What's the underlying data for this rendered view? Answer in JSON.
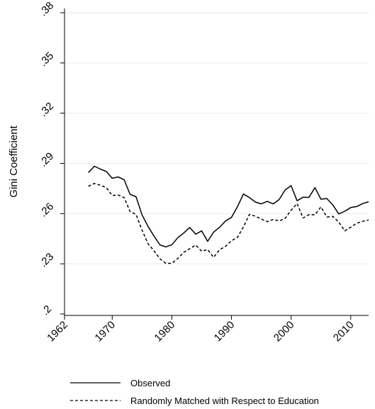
{
  "chart_data": {
    "type": "line",
    "title": "",
    "xlabel": "",
    "ylabel": "Gini Coefficient",
    "xlim": [
      1962,
      2013
    ],
    "ylim": [
      0.2,
      0.38
    ],
    "x_ticks": [
      1962,
      1970,
      1980,
      1990,
      2000,
      2010
    ],
    "x_tick_labels": [
      "1962",
      "1970",
      "1980",
      "1990",
      "2000",
      "2010"
    ],
    "y_ticks": [
      0.2,
      0.23,
      0.26,
      0.29,
      0.32,
      0.35,
      0.38
    ],
    "y_tick_labels": [
      ".2",
      ".23",
      ".26",
      ".29",
      ".32",
      ".35",
      ".38"
    ],
    "grid": "horizontal",
    "legend_position": "bottom",
    "x": [
      1966,
      1967,
      1968,
      1969,
      1970,
      1971,
      1972,
      1973,
      1974,
      1975,
      1976,
      1977,
      1978,
      1979,
      1980,
      1981,
      1982,
      1983,
      1984,
      1985,
      1986,
      1987,
      1988,
      1989,
      1990,
      1991,
      1992,
      1993,
      1994,
      1995,
      1996,
      1997,
      1998,
      1999,
      2000,
      2001,
      2002,
      2003,
      2004,
      2005,
      2006,
      2007,
      2008,
      2009,
      2010,
      2011,
      2012,
      2013
    ],
    "series": [
      {
        "name": "Observed",
        "style": "solid",
        "color": "#000000",
        "values": [
          0.2845,
          0.2883,
          0.2866,
          0.2852,
          0.2811,
          0.2819,
          0.2802,
          0.2715,
          0.2701,
          0.2592,
          0.2524,
          0.2466,
          0.2413,
          0.2401,
          0.2414,
          0.2456,
          0.2484,
          0.2517,
          0.2477,
          0.2497,
          0.2434,
          0.2489,
          0.2518,
          0.2556,
          0.2577,
          0.2641,
          0.2717,
          0.2696,
          0.2669,
          0.2658,
          0.2673,
          0.2658,
          0.2684,
          0.2741,
          0.2767,
          0.2677,
          0.2698,
          0.2697,
          0.2755,
          0.2686,
          0.269,
          0.2652,
          0.2598,
          0.2614,
          0.2636,
          0.2642,
          0.266,
          0.2671
        ]
      },
      {
        "name": "Randomly Matched with Respect to Education",
        "style": "dashed",
        "color": "#000000",
        "values": [
          0.2763,
          0.278,
          0.277,
          0.2755,
          0.2708,
          0.2711,
          0.2696,
          0.2612,
          0.2595,
          0.2501,
          0.242,
          0.2378,
          0.233,
          0.2303,
          0.2303,
          0.2332,
          0.2369,
          0.239,
          0.2412,
          0.2375,
          0.2385,
          0.2339,
          0.2384,
          0.2404,
          0.2438,
          0.2458,
          0.252,
          0.2595,
          0.2585,
          0.2567,
          0.2552,
          0.2565,
          0.2556,
          0.2571,
          0.262,
          0.266,
          0.2574,
          0.2594,
          0.2593,
          0.264,
          0.258,
          0.2583,
          0.2549,
          0.2497,
          0.2519,
          0.2542,
          0.2554,
          0.2562
        ]
      }
    ]
  }
}
